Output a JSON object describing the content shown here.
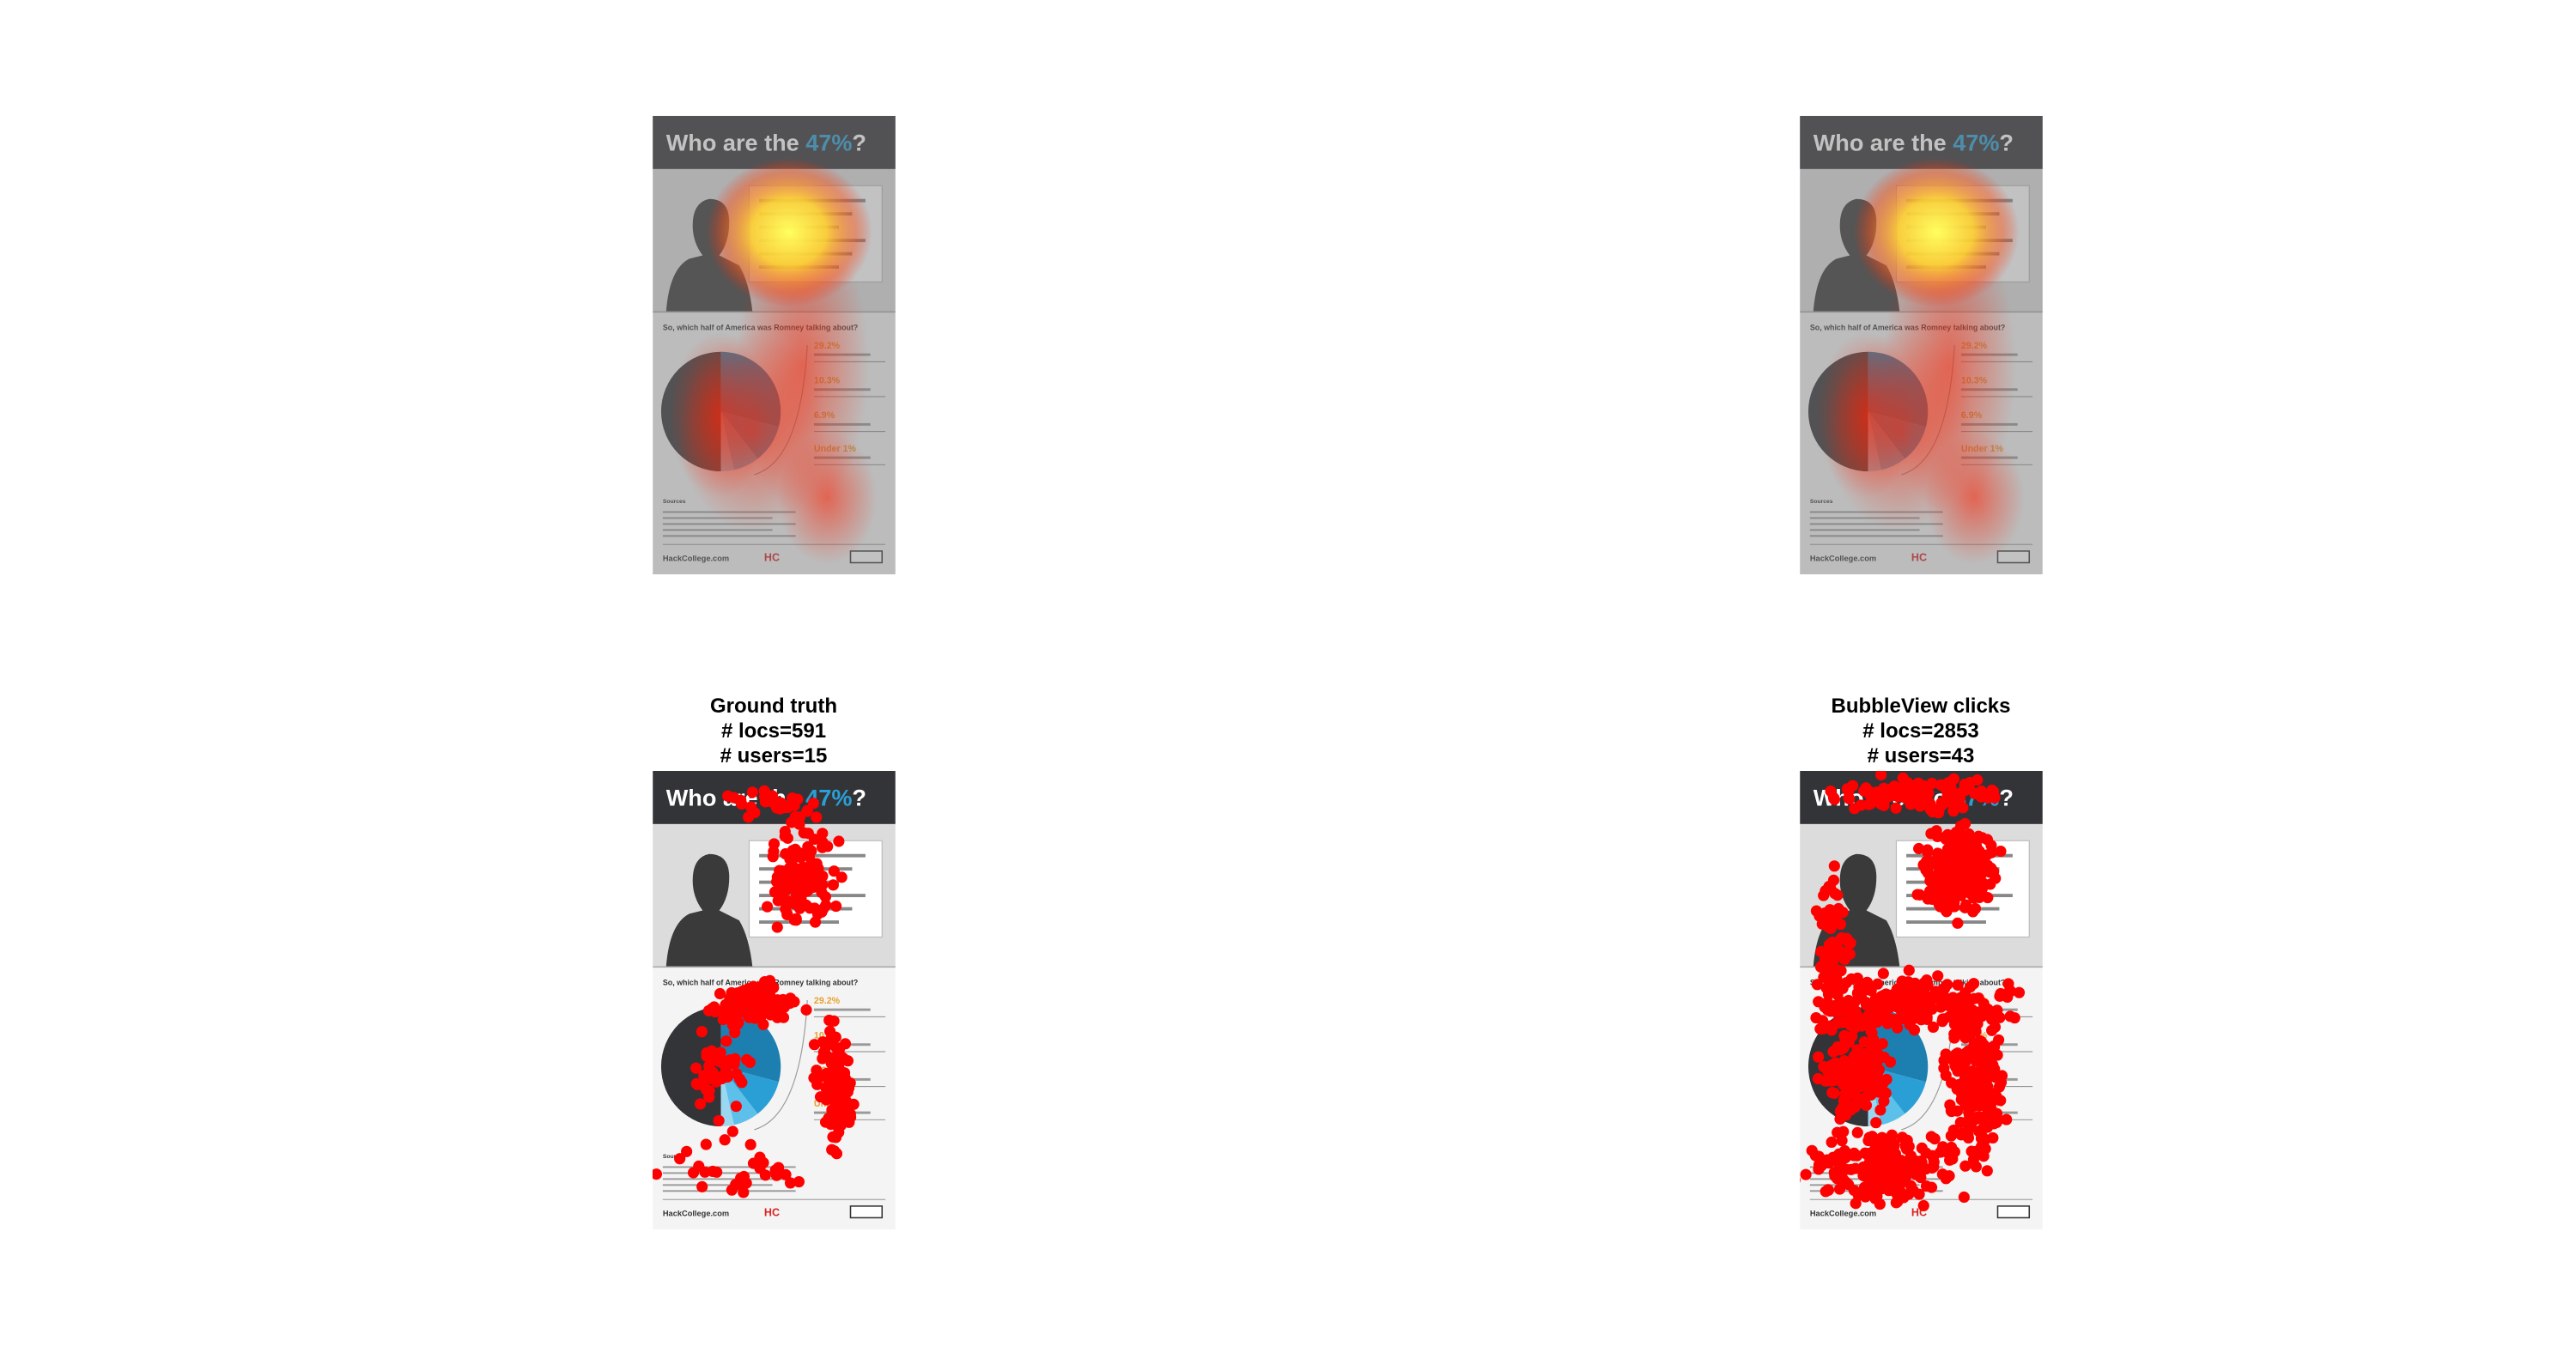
{
  "infographic": {
    "title_parts": [
      "Who are the ",
      "47%",
      "?"
    ],
    "subtitle": "So, which half of America was Romney talking about?",
    "stats": [
      "29.2%",
      "10.3%",
      "6.9%",
      "Under 1%"
    ],
    "sources": "Sources",
    "footer": "HackCollege.com",
    "logo": "HC"
  },
  "panels": [
    {
      "lines": [
        "Ground truth",
        "# locs=591",
        "# users=15"
      ]
    },
    {
      "lines": [
        "BubbleView clicks",
        "# locs=2853",
        "# users=43"
      ]
    }
  ]
}
